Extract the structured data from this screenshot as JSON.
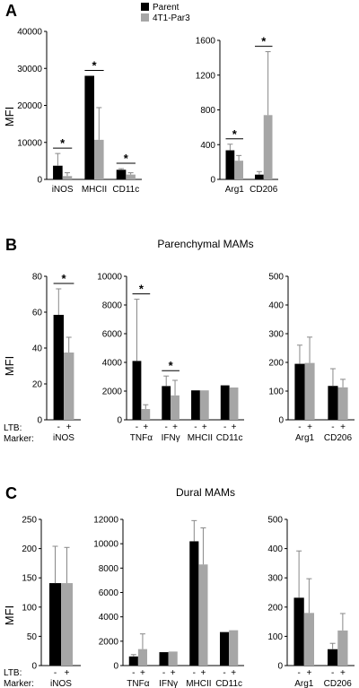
{
  "colors": {
    "parent": "#000000",
    "par3": "#a6a6a6",
    "error": "#888888"
  },
  "legend": [
    {
      "name": "Parent",
      "color": "#000000"
    },
    {
      "name": "4T1-Par3",
      "color": "#a6a6a6"
    }
  ],
  "panels": [
    {
      "letter": "A",
      "title": "",
      "ylabel": "MFI",
      "row_labels": []
    },
    {
      "letter": "B",
      "title": "Parenchymal MAMs",
      "ylabel": "MFI",
      "row_labels": [
        "LTB:",
        "Marker:"
      ]
    },
    {
      "letter": "C",
      "title": "Dural MAMs",
      "ylabel": "MFI",
      "row_labels": [
        "LTB:",
        "Marker:"
      ]
    }
  ],
  "chart_data": [
    {
      "type": "bar",
      "panel": "A",
      "categories": [
        "iNOS",
        "MHCII",
        "CD11c"
      ],
      "ylim": [
        0,
        40000
      ],
      "yticks": [
        0,
        10000,
        20000,
        30000,
        40000
      ],
      "series": [
        {
          "name": "Parent",
          "values": [
            3700,
            28000,
            2600
          ],
          "errors": [
            3300,
            0,
            300
          ]
        },
        {
          "name": "4T1-Par3",
          "values": [
            900,
            10700,
            1300
          ],
          "errors": [
            900,
            8700,
            500
          ]
        }
      ],
      "significant": [
        true,
        true,
        true
      ]
    },
    {
      "type": "bar",
      "panel": "A",
      "categories": [
        "Arg1",
        "CD206"
      ],
      "ylim": [
        0,
        1600
      ],
      "yticks": [
        0,
        400,
        800,
        1200,
        1600
      ],
      "series": [
        {
          "name": "Parent",
          "values": [
            335,
            55
          ],
          "errors": [
            70,
            35
          ]
        },
        {
          "name": "4T1-Par3",
          "values": [
            215,
            740
          ],
          "errors": [
            60,
            730
          ]
        }
      ],
      "significant": [
        true,
        true
      ]
    },
    {
      "type": "bar",
      "panel": "B",
      "categories": [
        "iNOS"
      ],
      "ylim": [
        0,
        80
      ],
      "yticks": [
        0,
        20,
        40,
        60,
        80
      ],
      "series": [
        {
          "name": "-",
          "values": [
            58.5
          ],
          "errors": [
            14.5
          ]
        },
        {
          "name": "+",
          "values": [
            37.5
          ],
          "errors": [
            8.5
          ]
        }
      ],
      "significant": [
        true
      ]
    },
    {
      "type": "bar",
      "panel": "B",
      "categories": [
        "TNFα",
        "IFNγ",
        "MHCII",
        "CD11c"
      ],
      "ylim": [
        0,
        10000
      ],
      "yticks": [
        0,
        2000,
        4000,
        6000,
        8000,
        10000
      ],
      "series": [
        {
          "name": "-",
          "values": [
            4100,
            2350,
            2050,
            2400
          ],
          "errors": [
            4300,
            700,
            0,
            0
          ]
        },
        {
          "name": "+",
          "values": [
            750,
            1700,
            2050,
            2250
          ],
          "errors": [
            300,
            1050,
            0,
            0
          ]
        }
      ],
      "significant": [
        true,
        true,
        false,
        false
      ]
    },
    {
      "type": "bar",
      "panel": "B",
      "categories": [
        "Arg1",
        "CD206"
      ],
      "ylim": [
        0,
        500
      ],
      "yticks": [
        0,
        100,
        200,
        300,
        400,
        500
      ],
      "series": [
        {
          "name": "-",
          "values": [
            195,
            118
          ],
          "errors": [
            65,
            60
          ]
        },
        {
          "name": "+",
          "values": [
            198,
            113
          ],
          "errors": [
            90,
            28
          ]
        }
      ],
      "significant": [
        false,
        false
      ]
    },
    {
      "type": "bar",
      "panel": "C",
      "categories": [
        "iNOS"
      ],
      "ylim": [
        0,
        250
      ],
      "yticks": [
        0,
        50,
        100,
        150,
        200,
        250
      ],
      "series": [
        {
          "name": "-",
          "values": [
            141
          ],
          "errors": [
            63
          ]
        },
        {
          "name": "+",
          "values": [
            141
          ],
          "errors": [
            61
          ]
        }
      ],
      "significant": [
        false
      ]
    },
    {
      "type": "bar",
      "panel": "C",
      "categories": [
        "TNFα",
        "IFNγ",
        "MHCII",
        "CD11c"
      ],
      "ylim": [
        0,
        12000
      ],
      "yticks": [
        0,
        2000,
        4000,
        6000,
        8000,
        10000,
        12000
      ],
      "series": [
        {
          "name": "-",
          "values": [
            750,
            1100,
            10200,
            2750
          ],
          "errors": [
            150,
            0,
            1700,
            0
          ]
        },
        {
          "name": "+",
          "values": [
            1350,
            1150,
            8300,
            2900
          ],
          "errors": [
            1250,
            0,
            3000,
            0
          ]
        }
      ],
      "significant": [
        false,
        false,
        false,
        false
      ]
    },
    {
      "type": "bar",
      "panel": "C",
      "categories": [
        "Arg1",
        "CD206"
      ],
      "ylim": [
        0,
        500
      ],
      "yticks": [
        0,
        100,
        200,
        300,
        400,
        500
      ],
      "series": [
        {
          "name": "-",
          "values": [
            232,
            56
          ],
          "errors": [
            160,
            20
          ]
        },
        {
          "name": "+",
          "values": [
            180,
            120
          ],
          "errors": [
            117,
            58
          ]
        }
      ],
      "significant": [
        false,
        false
      ]
    }
  ]
}
